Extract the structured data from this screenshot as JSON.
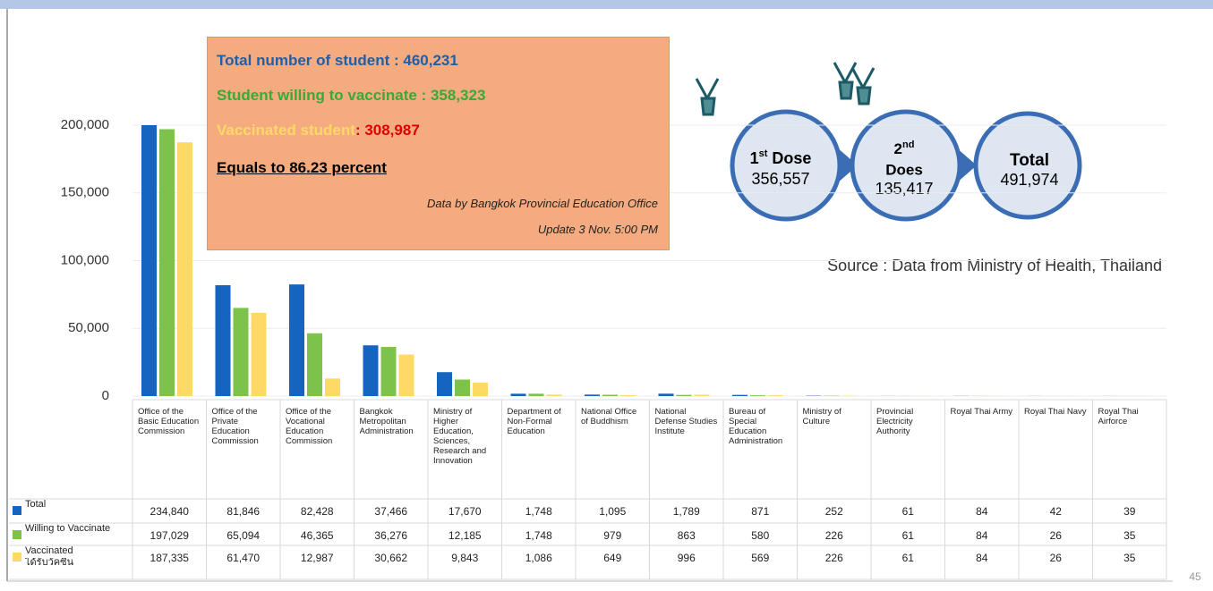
{
  "chart_data": {
    "type": "bar",
    "categories": [
      "Office of the Basic Education Commission",
      "Office of the Private Education Commission",
      "Office of the Vocational Education Commission",
      "Bangkok Metropolitan Administration",
      "Ministry of Higher Education, Sciences, Research and Innovation",
      "Department of Non-Formal Education",
      "National Office of Buddhism",
      "National Defense Studies Institute",
      "Bureau of Special Education Administration",
      "Ministry of Culture",
      "Provincial Electricity Authority",
      "Royal Thai Army",
      "Royal Thai Navy",
      "Royal Thai Airforce"
    ],
    "series": [
      {
        "name": "Total",
        "color": "#1565c0",
        "values": [
          234840,
          81846,
          82428,
          37466,
          17670,
          1748,
          1095,
          1789,
          871,
          252,
          61,
          84,
          42,
          39
        ],
        "value_labels": [
          "234,840",
          "81,846",
          "82,428",
          "37,466",
          "17,670",
          "1,748",
          "1,095",
          "1,789",
          "871",
          "252",
          "61",
          "84",
          "42",
          "39"
        ]
      },
      {
        "name": "Willing to Vaccinate",
        "color": "#7dc24b",
        "values": [
          197029,
          65094,
          46365,
          36276,
          12185,
          1748,
          979,
          863,
          580,
          226,
          61,
          84,
          26,
          35
        ],
        "value_labels": [
          "197,029",
          "65,094",
          "46,365",
          "36,276",
          "12,185",
          "1,748",
          "979",
          "863",
          "580",
          "226",
          "61",
          "84",
          "26",
          "35"
        ]
      },
      {
        "name": "Vaccinated",
        "local_name": "ได้รับวัคซีน",
        "color": "#ffd966",
        "values": [
          187335,
          61470,
          12987,
          30662,
          9843,
          1086,
          649,
          996,
          569,
          226,
          61,
          84,
          26,
          35
        ],
        "value_labels": [
          "187,335",
          "61,470",
          "12,987",
          "30,662",
          "9,843",
          "1,086",
          "649",
          "996",
          "569",
          "226",
          "61",
          "84",
          "26",
          "35"
        ]
      }
    ],
    "ylim": [
      0,
      200000
    ],
    "yticks": [
      0,
      {
        "value": 50000,
        "label": "50,000"
      },
      {
        "value": 100000,
        "label": "100,000"
      },
      {
        "value": 150000,
        "label": "150,000"
      },
      {
        "value": 200000,
        "label": "200,000"
      }
    ],
    "grid": true
  },
  "info_box": {
    "total": "Total number of student : 460,231",
    "willing": "Student willing to vaccinate : 358,323",
    "vaccinated_label": "Vaccinated student",
    "vaccinated_value": ": 308,987",
    "percent": "Equals to 86.23 percent",
    "credit": "Data by Bangkok Provincial Education Office",
    "update": "Update 3 Nov. 5:00 PM"
  },
  "doses": [
    {
      "ordinal": "1",
      "suffix": "st",
      "label": "Dose",
      "value": "356,557"
    },
    {
      "ordinal": "2",
      "suffix": "nd",
      "label": "Does",
      "value": "135,417"
    },
    {
      "label": "Total",
      "value": "491,974"
    }
  ],
  "source": "Source : Data from Ministry of Health, Thailand",
  "page_number": "45"
}
